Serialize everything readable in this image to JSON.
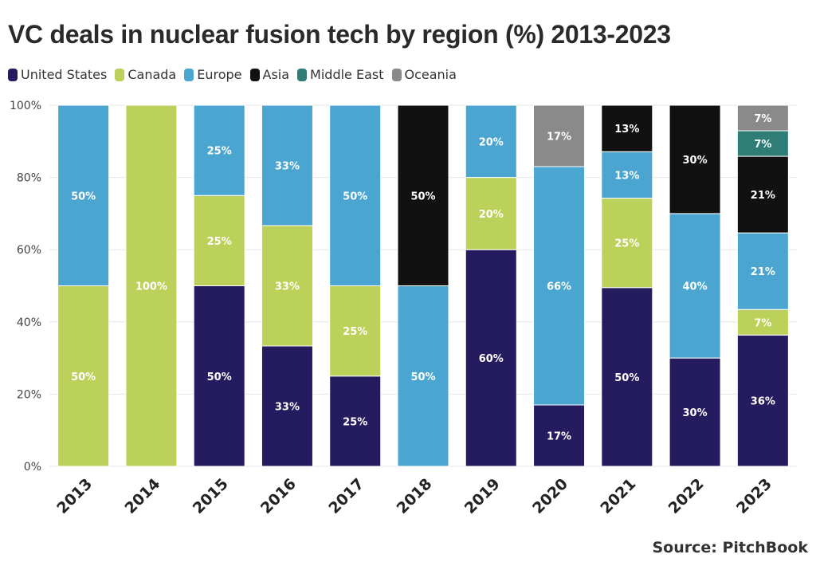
{
  "chart_data": {
    "type": "bar",
    "stacked": true,
    "title": "VC deals in nuclear fusion tech by region (%) 2013-2023",
    "source": "Source: PitchBook",
    "xlabel": "",
    "ylabel": "",
    "ylim": [
      0,
      100
    ],
    "yticks": [
      "0%",
      "20%",
      "40%",
      "60%",
      "80%",
      "100%"
    ],
    "grid": true,
    "legend": "top-left",
    "categories": [
      "2013",
      "2014",
      "2015",
      "2016",
      "2017",
      "2018",
      "2019",
      "2020",
      "2021",
      "2022",
      "2023"
    ],
    "series": [
      {
        "name": "United States",
        "color": "#241c5e",
        "values": [
          0,
          0,
          50,
          33,
          25,
          0,
          60,
          17,
          50,
          30,
          36
        ]
      },
      {
        "name": "Canada",
        "color": "#bcd15a",
        "values": [
          50,
          100,
          25,
          33,
          25,
          0,
          20,
          0,
          25,
          0,
          7
        ]
      },
      {
        "name": "Europe",
        "color": "#4aa6d0",
        "values": [
          50,
          0,
          25,
          33,
          50,
          50,
          20,
          66,
          13,
          40,
          21
        ]
      },
      {
        "name": "Asia",
        "color": "#111111",
        "values": [
          0,
          0,
          0,
          0,
          0,
          50,
          0,
          0,
          13,
          30,
          21
        ]
      },
      {
        "name": "Middle East",
        "color": "#2e7d77",
        "values": [
          0,
          0,
          0,
          0,
          0,
          0,
          0,
          0,
          0,
          0,
          7
        ]
      },
      {
        "name": "Oceania",
        "color": "#8a8a8a",
        "values": [
          0,
          0,
          0,
          0,
          0,
          0,
          0,
          17,
          0,
          0,
          7
        ]
      }
    ]
  }
}
